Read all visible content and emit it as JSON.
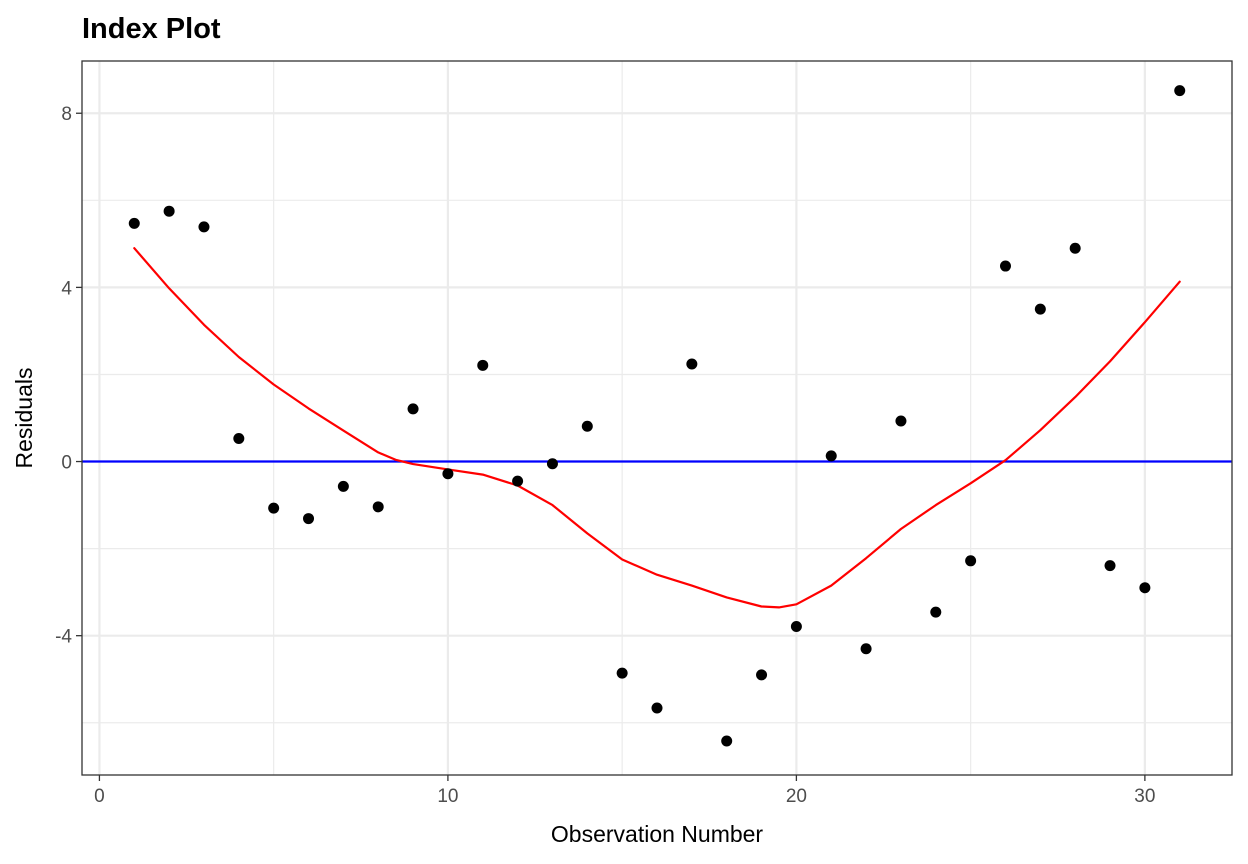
{
  "chart_data": {
    "type": "scatter",
    "title": "Index Plot",
    "xlabel": "Observation Number",
    "ylabel": "Residuals",
    "xlim": [
      -0.5,
      32.5
    ],
    "ylim": [
      -7.2,
      9.2
    ],
    "x_ticks": [
      0,
      10,
      20,
      30
    ],
    "x_tick_labels": [
      "0",
      "10",
      "20",
      "30"
    ],
    "y_ticks": [
      -4,
      0,
      4,
      8
    ],
    "y_tick_labels": [
      "-4",
      "0",
      "4",
      "8"
    ],
    "x_minor_ticks": [
      5,
      15,
      25
    ],
    "y_minor_ticks": [
      -6,
      -2,
      2,
      6
    ],
    "grid": true,
    "colors": {
      "points": "#000000",
      "smooth_line": "#ff0000",
      "reference_line": "#0000ff",
      "grid": "#ebebeb",
      "panel_border": "#333333"
    },
    "points": {
      "x": [
        1,
        2,
        3,
        4,
        5,
        6,
        7,
        8,
        9,
        10,
        11,
        12,
        13,
        14,
        15,
        16,
        17,
        18,
        19,
        20,
        21,
        22,
        23,
        24,
        25,
        26,
        27,
        28,
        29,
        30,
        31
      ],
      "y": [
        5.47,
        5.75,
        5.39,
        0.53,
        -1.07,
        -1.31,
        -0.57,
        -1.04,
        1.21,
        -0.28,
        2.21,
        -0.45,
        -0.05,
        0.81,
        -4.86,
        -5.66,
        2.24,
        -6.42,
        -4.9,
        -3.79,
        0.13,
        -4.3,
        0.93,
        -3.46,
        -2.28,
        4.49,
        3.5,
        4.9,
        -2.39,
        -2.9,
        8.52
      ]
    },
    "smooth_line": {
      "x": [
        1,
        2,
        3,
        4,
        5,
        6,
        7,
        8,
        8.5,
        9,
        10,
        11,
        12,
        13,
        14,
        15,
        16,
        17,
        18,
        19,
        19.5,
        20,
        21,
        22,
        23,
        24,
        25,
        26,
        27,
        28,
        29,
        30,
        31
      ],
      "y": [
        4.9,
        3.98,
        3.14,
        2.4,
        1.77,
        1.22,
        0.71,
        0.21,
        0.04,
        -0.06,
        -0.18,
        -0.3,
        -0.55,
        -1.0,
        -1.65,
        -2.25,
        -2.6,
        -2.85,
        -3.12,
        -3.33,
        -3.35,
        -3.28,
        -2.85,
        -2.22,
        -1.55,
        -1.0,
        -0.5,
        0.03,
        0.72,
        1.48,
        2.3,
        3.2,
        4.13
      ]
    },
    "reference_line": {
      "y": 0
    }
  }
}
